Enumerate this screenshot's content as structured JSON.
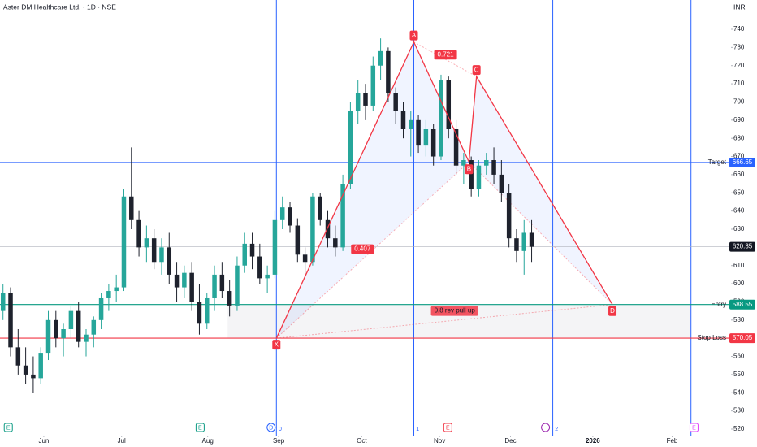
{
  "chart_data": {
    "type": "candlestick",
    "title": "Aster DM Healthcare Ltd. · 1D · NSE",
    "currency": "INR",
    "up_color": "#26a69a",
    "down_color": "#1e222d",
    "ylim": [
      520,
      740
    ],
    "yticks": [
      520,
      530,
      540,
      550,
      560,
      570,
      580,
      590,
      600,
      610,
      620,
      630,
      640,
      650,
      660,
      670,
      680,
      690,
      700,
      710,
      720,
      730,
      740
    ],
    "xlim": [
      -0.4,
      96.4
    ],
    "xticks": [
      {
        "value": 5.4,
        "label": "Jun"
      },
      {
        "value": 15.7,
        "label": "Jul"
      },
      {
        "value": 27.1,
        "label": "Aug"
      },
      {
        "value": 36.5,
        "label": "Sep"
      },
      {
        "value": 47.5,
        "label": "Oct"
      },
      {
        "value": 57.8,
        "label": "Nov"
      },
      {
        "value": 67.2,
        "label": "Dec"
      },
      {
        "value": 78.1,
        "label": "2026"
      },
      {
        "value": 88.6,
        "label": "Feb"
      }
    ],
    "ohlc": [
      [
        585,
        600,
        580,
        595
      ],
      [
        595,
        598,
        560,
        565
      ],
      [
        565,
        575,
        550,
        555
      ],
      [
        555,
        565,
        545,
        550
      ],
      [
        550,
        560,
        540,
        548
      ],
      [
        548,
        565,
        545,
        562
      ],
      [
        562,
        585,
        558,
        580
      ],
      [
        580,
        585,
        565,
        570
      ],
      [
        570,
        578,
        560,
        575
      ],
      [
        575,
        588,
        570,
        585
      ],
      [
        585,
        590,
        565,
        568
      ],
      [
        568,
        575,
        560,
        572
      ],
      [
        572,
        582,
        565,
        580
      ],
      [
        580,
        595,
        575,
        592
      ],
      [
        592,
        600,
        585,
        596
      ],
      [
        596,
        605,
        590,
        598
      ],
      [
        598,
        652,
        596,
        648
      ],
      [
        648,
        675,
        630,
        635
      ],
      [
        635,
        640,
        615,
        620
      ],
      [
        620,
        632,
        612,
        625
      ],
      [
        625,
        630,
        608,
        612
      ],
      [
        612,
        625,
        605,
        620
      ],
      [
        620,
        628,
        600,
        605
      ],
      [
        605,
        612,
        590,
        598
      ],
      [
        598,
        610,
        592,
        606
      ],
      [
        606,
        612,
        585,
        590
      ],
      [
        590,
        600,
        572,
        578
      ],
      [
        578,
        595,
        575,
        592
      ],
      [
        592,
        610,
        585,
        605
      ],
      [
        605,
        612,
        592,
        596
      ],
      [
        596,
        602,
        582,
        588
      ],
      [
        588,
        615,
        585,
        610
      ],
      [
        610,
        628,
        606,
        622
      ],
      [
        622,
        628,
        608,
        615
      ],
      [
        615,
        622,
        600,
        603
      ],
      [
        603,
        610,
        595,
        605
      ],
      [
        605,
        640,
        603,
        635
      ],
      [
        635,
        648,
        630,
        642
      ],
      [
        642,
        645,
        628,
        632
      ],
      [
        632,
        636,
        612,
        616
      ],
      [
        616,
        620,
        605,
        612
      ],
      [
        612,
        650,
        610,
        648
      ],
      [
        648,
        650,
        632,
        635
      ],
      [
        635,
        640,
        620,
        625
      ],
      [
        625,
        632,
        615,
        620
      ],
      [
        620,
        660,
        618,
        655
      ],
      [
        655,
        700,
        652,
        695
      ],
      [
        695,
        712,
        688,
        705
      ],
      [
        705,
        710,
        690,
        698
      ],
      [
        698,
        725,
        695,
        720
      ],
      [
        720,
        735,
        712,
        728
      ],
      [
        728,
        730,
        700,
        705
      ],
      [
        705,
        708,
        688,
        695
      ],
      [
        695,
        700,
        680,
        685
      ],
      [
        685,
        695,
        670,
        690
      ],
      [
        690,
        693,
        672,
        676
      ],
      [
        676,
        690,
        670,
        685
      ],
      [
        685,
        688,
        665,
        670
      ],
      [
        670,
        715,
        668,
        712
      ],
      [
        712,
        714,
        680,
        685
      ],
      [
        685,
        690,
        660,
        665
      ],
      [
        665,
        672,
        655,
        668
      ],
      [
        668,
        670,
        648,
        652
      ],
      [
        652,
        668,
        648,
        665
      ],
      [
        665,
        672,
        660,
        668
      ],
      [
        668,
        675,
        655,
        660
      ],
      [
        660,
        668,
        645,
        650
      ],
      [
        650,
        655,
        620,
        625
      ],
      [
        625,
        630,
        612,
        618
      ],
      [
        618,
        635,
        605,
        628
      ],
      [
        628,
        635,
        612,
        620.35
      ]
    ],
    "levels": [
      {
        "name": "Target",
        "value": 666.65,
        "color": "#2962ff"
      },
      {
        "name": "Entry",
        "value": 588.55,
        "color": "#089981"
      },
      {
        "name": "Stop Loss",
        "value": 570.05,
        "color": "#f23645"
      },
      {
        "value": 620.35,
        "color": "#131722"
      }
    ],
    "vlines": [
      36.2,
      54.4,
      72.8,
      91.1
    ],
    "pattern_color": "#f23645",
    "pattern": [
      {
        "label": "X",
        "x": 36.2,
        "y": 570
      },
      {
        "label": "A",
        "x": 54.4,
        "y": 733
      },
      {
        "label": "B",
        "x": 61.7,
        "y": 667
      },
      {
        "label": "C",
        "x": 62.7,
        "y": 714
      },
      {
        "label": "D",
        "x": 80.7,
        "y": 588.55
      }
    ],
    "ratios": [
      {
        "label": "0.407",
        "x": 47.6,
        "y": 619
      },
      {
        "label": "0.721",
        "x": 58.6,
        "y": 726
      },
      {
        "label": "0.8 rev pull up",
        "x": 59.8,
        "y": 585
      }
    ],
    "events": [
      {
        "label": "E",
        "x": 0.7
      },
      {
        "label": "E",
        "x": 26.1
      },
      {
        "label": "D",
        "x": 35.5
      },
      {
        "label": "0",
        "x": 36.7
      },
      {
        "label": "1",
        "x": 54.9
      },
      {
        "label": "E",
        "x": 58.9
      },
      {
        "label": "2",
        "x": 73.3
      },
      {
        "label": "E",
        "x": 91.5
      }
    ]
  }
}
